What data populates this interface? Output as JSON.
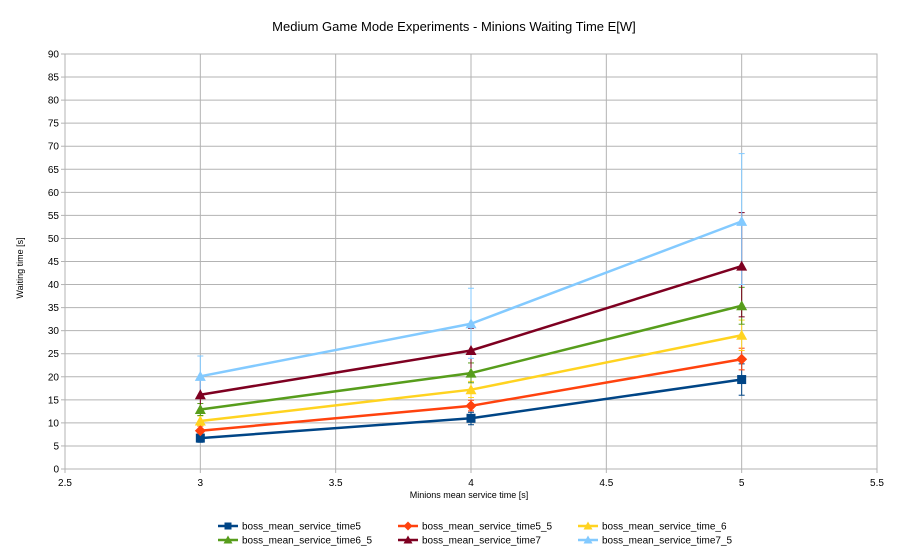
{
  "chart_data": {
    "type": "line",
    "title": "Medium Game Mode Experiments - Minions Waiting Time E[W]",
    "xlabel": "Minions mean service time [s]",
    "ylabel": "Waiting time [s]",
    "xlim": [
      2.5,
      5.5
    ],
    "ylim": [
      0,
      90
    ],
    "xticks": [
      "2.5",
      "3",
      "3.5",
      "4",
      "4.5",
      "5",
      "5.5"
    ],
    "yticks": [
      "0",
      "5",
      "10",
      "15",
      "20",
      "25",
      "30",
      "35",
      "40",
      "45",
      "50",
      "55",
      "60",
      "65",
      "70",
      "75",
      "80",
      "85",
      "90"
    ],
    "grid": true,
    "legend_position": "bottom",
    "x": [
      3,
      4,
      5
    ],
    "series": [
      {
        "name": "boss_mean_service_time5",
        "color": "#004586",
        "marker": "square",
        "values": [
          6.7,
          11.0,
          19.4
        ],
        "err_low": [
          5.8,
          9.6,
          16.0
        ],
        "err_high": [
          7.6,
          12.3,
          22.8
        ]
      },
      {
        "name": "boss_mean_service_time5_5",
        "color": "#ff420e",
        "marker": "diamond",
        "values": [
          8.3,
          13.7,
          23.8
        ],
        "err_low": [
          7.4,
          12.6,
          21.5
        ],
        "err_high": [
          9.3,
          14.9,
          26.2
        ]
      },
      {
        "name": "boss_mean_service_time_6",
        "color": "#ffd320",
        "marker": "triangle",
        "values": [
          10.4,
          17.2,
          29.0
        ],
        "err_low": [
          9.4,
          15.5,
          25.7
        ],
        "err_high": [
          11.5,
          19.0,
          32.3
        ]
      },
      {
        "name": "boss_mean_service_time6_5",
        "color": "#579d1c",
        "marker": "triangle",
        "values": [
          12.9,
          20.8,
          35.4
        ],
        "err_low": [
          11.6,
          18.7,
          31.4
        ],
        "err_high": [
          14.2,
          23.0,
          39.4
        ]
      },
      {
        "name": "boss_mean_service_time7",
        "color": "#7e0021",
        "marker": "triangle",
        "values": [
          16.1,
          25.7,
          44.0
        ],
        "err_low": [
          12.8,
          20.9,
          33.0
        ],
        "err_high": [
          19.4,
          30.5,
          55.6
        ]
      },
      {
        "name": "boss_mean_service_time7_5",
        "color": "#83caff",
        "marker": "triangle",
        "values": [
          20.1,
          31.5,
          53.7
        ],
        "err_low": [
          15.6,
          24.0,
          40.0
        ],
        "err_high": [
          24.5,
          39.2,
          68.4
        ]
      }
    ]
  }
}
